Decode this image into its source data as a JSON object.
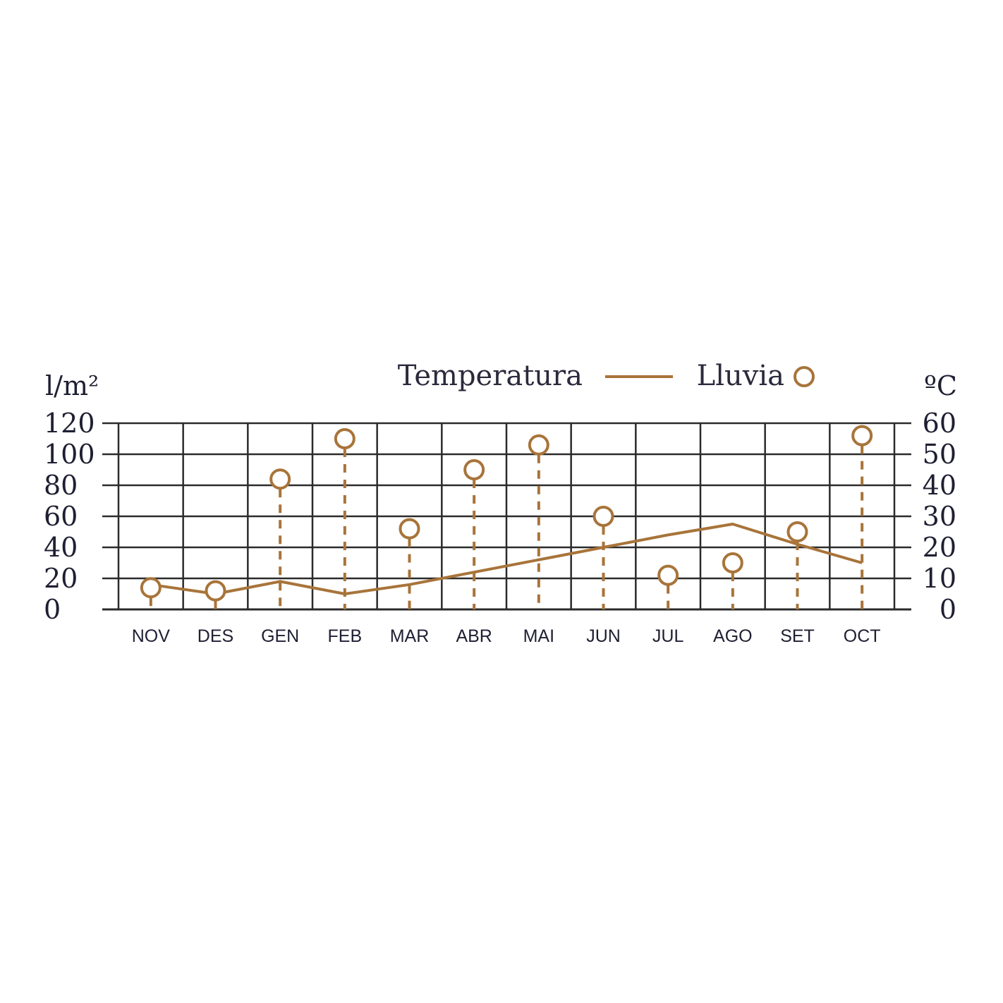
{
  "chart_data": {
    "type": "line",
    "categories": [
      "NOV",
      "DES",
      "GEN",
      "FEB",
      "MAR",
      "ABR",
      "MAI",
      "JUN",
      "JUL",
      "AGO",
      "SET",
      "OCT"
    ],
    "series": [
      {
        "name": "Temperatura",
        "axis": "right",
        "style": "line",
        "values": [
          8,
          5,
          9,
          5,
          8,
          12,
          16,
          20,
          24,
          27.5,
          21,
          15
        ]
      },
      {
        "name": "Lluvia",
        "axis": "left",
        "style": "lollipop",
        "values": [
          14,
          12,
          84,
          110,
          52,
          90,
          106,
          60,
          22,
          30,
          50,
          112
        ]
      }
    ],
    "ylabel_left": "l/m²",
    "ylabel_right": "ºC",
    "ylim_left": [
      0,
      120
    ],
    "ylim_right": [
      0,
      60
    ],
    "yticks_left": [
      "0",
      "20",
      "40",
      "60",
      "80",
      "100",
      "120"
    ],
    "yticks_right": [
      "0",
      "10",
      "20",
      "30",
      "40",
      "50",
      "60"
    ],
    "grid": true,
    "legend": "top-right",
    "colors": {
      "series": "#a8743a",
      "grid": "#2b2b2b",
      "text": "#1f1f33"
    }
  }
}
